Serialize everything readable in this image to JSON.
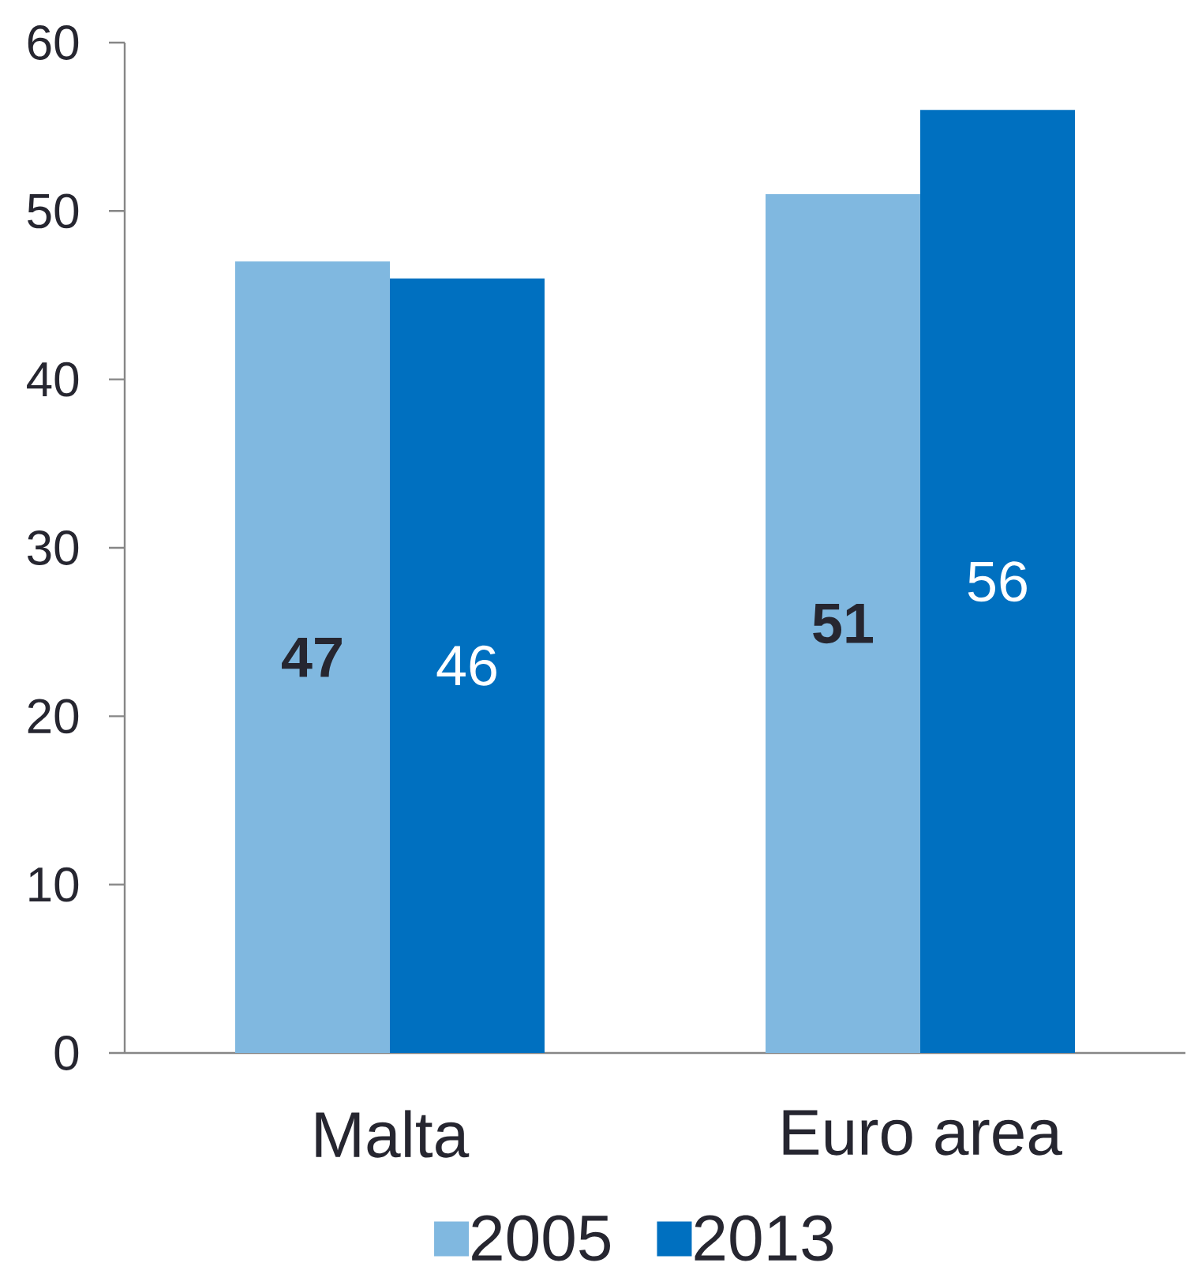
{
  "chart_data": {
    "type": "bar",
    "categories": [
      "Malta",
      "Euro area"
    ],
    "series": [
      {
        "name": "2005",
        "color": "#80b8e0",
        "values": [
          47,
          51
        ]
      },
      {
        "name": "2013",
        "color": "#0070c0",
        "values": [
          46,
          56
        ]
      }
    ],
    "ylim": [
      0,
      60
    ],
    "yticks": [
      0,
      10,
      20,
      30,
      40,
      50,
      60
    ],
    "data_labels": true,
    "legend": "bottom"
  }
}
